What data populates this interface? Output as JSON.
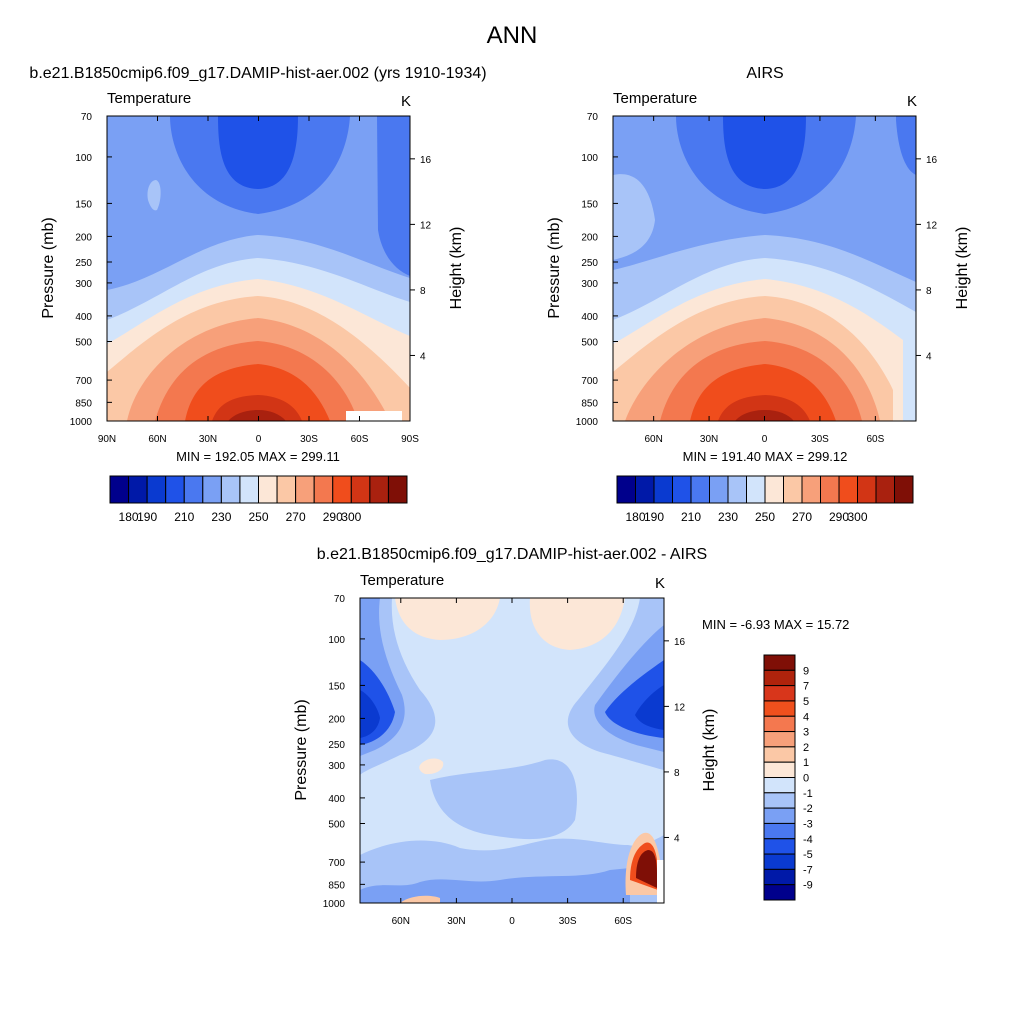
{
  "page": {
    "title": "ANN"
  },
  "chart_data": [
    {
      "type": "heatmap",
      "title": "b.e21.B1850cmip6.f09_g17.DAMIP-hist-aer.002 (yrs 1910-1934)",
      "subtitle": "Temperature",
      "units": "K",
      "ylabel": "Pressure (mb)",
      "ylabel_right": "Height (km)",
      "x_ticks": [
        "90N",
        "60N",
        "30N",
        "0",
        "30S",
        "60S",
        "90S"
      ],
      "y_ticks": [
        70,
        100,
        150,
        200,
        250,
        300,
        400,
        500,
        700,
        850,
        1000
      ],
      "y2_ticks": [
        4,
        8,
        12,
        16
      ],
      "y_scale": "log",
      "stats": "MIN = 192.05  MAX = 299.11",
      "min": 192.05,
      "max": 299.11,
      "colorbar_orientation": "horizontal",
      "colorbar_levels": [
        180,
        190,
        200,
        210,
        220,
        230,
        240,
        250,
        260,
        270,
        280,
        290,
        300
      ],
      "colorbar_labels": [
        "180",
        "190",
        "210",
        "230",
        "250",
        "270",
        "290",
        "300"
      ],
      "colorbar_colors": [
        "#00008c",
        "#0019a8",
        "#0a3ad0",
        "#1f52e8",
        "#4a78f0",
        "#7aa0f4",
        "#a8c4f8",
        "#d2e4fb",
        "#fce7d7",
        "#fbc8a6",
        "#f7a07a",
        "#f3784f",
        "#f04d1c",
        "#d23515",
        "#a9210f",
        "#7f0f06"
      ]
    },
    {
      "type": "heatmap",
      "title": "AIRS",
      "subtitle": "Temperature",
      "units": "K",
      "ylabel": "Pressure (mb)",
      "ylabel_right": "Height (km)",
      "x_ticks": [
        "60N",
        "30N",
        "0",
        "30S",
        "60S"
      ],
      "y_ticks": [
        70,
        100,
        150,
        200,
        250,
        300,
        400,
        500,
        700,
        850,
        1000
      ],
      "y2_ticks": [
        4,
        8,
        12,
        16
      ],
      "y_scale": "log",
      "stats": "MIN = 191.40  MAX = 299.12",
      "min": 191.4,
      "max": 299.12,
      "colorbar_orientation": "horizontal",
      "colorbar_levels": [
        180,
        190,
        200,
        210,
        220,
        230,
        240,
        250,
        260,
        270,
        280,
        290,
        300
      ],
      "colorbar_labels": [
        "180",
        "190",
        "210",
        "230",
        "250",
        "270",
        "290",
        "300"
      ],
      "colorbar_colors": [
        "#00008c",
        "#0019a8",
        "#0a3ad0",
        "#1f52e8",
        "#4a78f0",
        "#7aa0f4",
        "#a8c4f8",
        "#d2e4fb",
        "#fce7d7",
        "#fbc8a6",
        "#f7a07a",
        "#f3784f",
        "#f04d1c",
        "#d23515",
        "#a9210f",
        "#7f0f06"
      ]
    },
    {
      "type": "heatmap",
      "title": "b.e21.B1850cmip6.f09_g17.DAMIP-hist-aer.002 - AIRS",
      "subtitle": "Temperature",
      "units": "K",
      "ylabel": "Pressure (mb)",
      "ylabel_right": "Height (km)",
      "x_ticks": [
        "60N",
        "30N",
        "0",
        "30S",
        "60S"
      ],
      "y_ticks": [
        70,
        100,
        150,
        200,
        250,
        300,
        400,
        500,
        700,
        850,
        1000
      ],
      "y2_ticks": [
        4,
        8,
        12,
        16
      ],
      "y_scale": "log",
      "stats": "MIN =  -6.93  MAX =  15.72",
      "min": -6.93,
      "max": 15.72,
      "colorbar_orientation": "vertical",
      "colorbar_levels": [
        9,
        7,
        5,
        4,
        3,
        2,
        1,
        0,
        -1,
        -2,
        -3,
        -4,
        -5,
        -7,
        -9
      ],
      "colorbar_colors": [
        "#7f0f06",
        "#b0230c",
        "#d8361b",
        "#f0501d",
        "#f4784f",
        "#f7a07a",
        "#fbc8a6",
        "#fce7d7",
        "#d2e4fb",
        "#a8c4f8",
        "#7aa0f4",
        "#4a78f0",
        "#1f52e8",
        "#0a3ad0",
        "#0019a8",
        "#00008c"
      ]
    }
  ]
}
